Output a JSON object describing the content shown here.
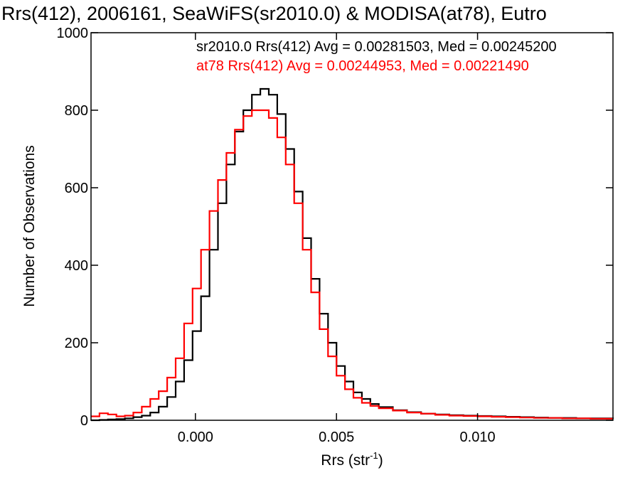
{
  "chart_data": {
    "type": "line",
    "title": "Rrs(412), 2006161, SeaWiFS(sr2010.0) & MODISA(at78), Eutro",
    "xlabel_main": "Rrs (str",
    "xlabel_sup": "-1",
    "xlabel_close": ")",
    "ylabel": "Number of Observations",
    "xlim": [
      -0.0037,
      0.0148
    ],
    "ylim": [
      0,
      1000
    ],
    "xticks": [
      {
        "value": 0.0,
        "label": "0.000"
      },
      {
        "value": 0.005,
        "label": "0.005"
      },
      {
        "value": 0.01,
        "label": "0.010"
      }
    ],
    "yticks": [
      {
        "value": 0,
        "label": "0"
      },
      {
        "value": 200,
        "label": "200"
      },
      {
        "value": 400,
        "label": "400"
      },
      {
        "value": 600,
        "label": "600"
      },
      {
        "value": 800,
        "label": "800"
      },
      {
        "value": 1000,
        "label": "1000"
      }
    ],
    "grid": false,
    "legend_placement": "top",
    "legend": [
      {
        "text": "sr2010.0 Rrs(412) Avg = 0.00281503, Med = 0.00245200",
        "color": "#000000"
      },
      {
        "text": "at78 Rrs(412) Avg = 0.00244953, Med = 0.00221490",
        "color": "#ff0000"
      }
    ],
    "series": [
      {
        "color": "#000000",
        "x": [
          -0.0037,
          -0.0034,
          -0.0031,
          -0.0028,
          -0.0025,
          -0.0022,
          -0.0019,
          -0.0016,
          -0.0013,
          -0.001,
          -0.0007,
          -0.0004,
          -0.0001,
          0.0002,
          0.0005,
          0.0008,
          0.0011,
          0.0014,
          0.0017,
          0.002,
          0.0023,
          0.0026,
          0.0029,
          0.0032,
          0.0035,
          0.0038,
          0.0041,
          0.0044,
          0.0047,
          0.005,
          0.0053,
          0.0056,
          0.0059,
          0.0062,
          0.0065,
          0.007,
          0.0075,
          0.008,
          0.0085,
          0.009,
          0.0095,
          0.01,
          0.0105,
          0.011,
          0.0115,
          0.012,
          0.0125,
          0.013,
          0.0135,
          0.014,
          0.0148
        ],
        "y": [
          0,
          1,
          2,
          3,
          5,
          8,
          12,
          20,
          35,
          60,
          100,
          155,
          230,
          320,
          440,
          560,
          660,
          745,
          800,
          840,
          855,
          840,
          790,
          700,
          590,
          470,
          365,
          275,
          200,
          140,
          100,
          72,
          55,
          42,
          34,
          26,
          21,
          17,
          15,
          13,
          12,
          11,
          10,
          9,
          8,
          7,
          6,
          6,
          5,
          5,
          4
        ]
      },
      {
        "color": "#ff0000",
        "x": [
          -0.0037,
          -0.0034,
          -0.0031,
          -0.0028,
          -0.0025,
          -0.0022,
          -0.0019,
          -0.0016,
          -0.0013,
          -0.001,
          -0.0007,
          -0.0004,
          -0.0001,
          0.0002,
          0.0005,
          0.0008,
          0.0011,
          0.0014,
          0.0017,
          0.002,
          0.0023,
          0.0026,
          0.0029,
          0.0032,
          0.0035,
          0.0038,
          0.0041,
          0.0044,
          0.0047,
          0.005,
          0.0053,
          0.0056,
          0.0059,
          0.0062,
          0.0065,
          0.007,
          0.0075,
          0.008,
          0.0085,
          0.009,
          0.0095,
          0.01,
          0.0105,
          0.011,
          0.0115,
          0.012,
          0.0125,
          0.013,
          0.0135,
          0.014,
          0.0148
        ],
        "y": [
          10,
          18,
          15,
          10,
          12,
          20,
          35,
          55,
          75,
          110,
          160,
          250,
          340,
          440,
          540,
          620,
          690,
          750,
          785,
          800,
          800,
          780,
          730,
          660,
          560,
          440,
          330,
          235,
          165,
          115,
          80,
          58,
          45,
          37,
          31,
          25,
          20,
          17,
          14,
          12,
          11,
          10,
          9,
          8,
          7,
          6,
          6,
          5,
          5,
          4,
          4
        ]
      }
    ]
  }
}
